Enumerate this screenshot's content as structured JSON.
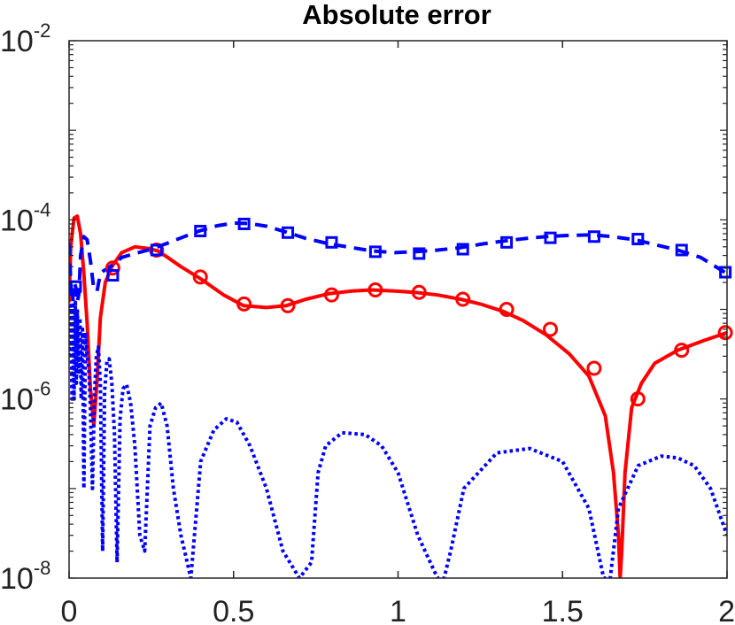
{
  "chart_data": {
    "type": "line",
    "title": "Absolute error",
    "xlabel": "",
    "ylabel": "",
    "xlim": [
      0,
      2
    ],
    "ylim": [
      1e-08,
      0.01
    ],
    "yscale": "log",
    "grid": false,
    "legend": null,
    "x_ticks": [
      0,
      0.5,
      1,
      1.5,
      2
    ],
    "x_tick_labels": [
      "0",
      "0.5",
      "1",
      "1.5",
      "2"
    ],
    "y_ticks": [
      1e-08,
      1e-06,
      0.0001,
      0.01
    ],
    "y_tick_labels": [
      {
        "base": "10",
        "exp": "-8"
      },
      {
        "base": "10",
        "exp": "-6"
      },
      {
        "base": "10",
        "exp": "-4"
      },
      {
        "base": "10",
        "exp": "-2"
      }
    ],
    "series": [
      {
        "style": "red solid line, circle markers",
        "color": "#ff0000",
        "x": [
          0.0,
          0.005,
          0.015,
          0.025,
          0.035,
          0.045,
          0.055,
          0.065,
          0.075,
          0.085,
          0.095,
          0.11,
          0.13,
          0.16,
          0.2,
          0.24,
          0.27,
          0.3,
          0.34,
          0.4,
          0.47,
          0.53,
          0.6,
          0.66,
          0.72,
          0.79,
          0.86,
          0.92,
          0.99,
          1.05,
          1.12,
          1.19,
          1.25,
          1.32,
          1.38,
          1.45,
          1.52,
          1.58,
          1.63,
          1.655,
          1.67,
          1.675,
          1.68,
          1.69,
          1.71,
          1.74,
          1.78,
          1.85,
          1.93,
          2.0
        ],
        "y": [
          1.2e-05,
          5e-05,
          0.000105,
          0.00011,
          7e-05,
          2.5e-05,
          7e-06,
          1.3e-06,
          5e-07,
          1.6e-06,
          8e-06,
          2e-05,
          3e-05,
          4.3e-05,
          5e-05,
          4.8e-05,
          4.5e-05,
          3.8e-05,
          3e-05,
          2.2e-05,
          1.45e-05,
          1.1e-05,
          1.05e-05,
          1.1e-05,
          1.3e-05,
          1.5e-05,
          1.6e-05,
          1.65e-05,
          1.6e-05,
          1.55e-05,
          1.45e-05,
          1.3e-05,
          1.15e-05,
          9.5e-06,
          7.5e-06,
          5.2e-06,
          3.2e-06,
          1.8e-06,
          6.5e-07,
          1.5e-07,
          3e-08,
          1e-08,
          2e-08,
          1.5e-07,
          8e-07,
          1.5e-06,
          2.5e-06,
          3.5e-06,
          4.5e-06,
          5.5e-06
        ],
        "markers_x": [
          0.133,
          0.266,
          0.399,
          0.532,
          0.665,
          0.798,
          0.931,
          1.064,
          1.197,
          1.33,
          1.463,
          1.596,
          1.729,
          1.862,
          1.995
        ],
        "markers_y": [
          2.9e-05,
          4.6e-05,
          2.3e-05,
          1.15e-05,
          1.1e-05,
          1.45e-05,
          1.65e-05,
          1.55e-05,
          1.3e-05,
          1e-05,
          6e-06,
          2.2e-06,
          1e-06,
          3.5e-06,
          5.5e-06
        ]
      },
      {
        "style": "blue dashed line, square markers",
        "color": "#0000ff",
        "x": [
          0.0,
          0.005,
          0.01,
          0.015,
          0.02,
          0.025,
          0.03,
          0.035,
          0.045,
          0.055,
          0.065,
          0.075,
          0.085,
          0.095,
          0.105,
          0.12,
          0.14,
          0.16,
          0.2,
          0.25,
          0.3,
          0.35,
          0.4,
          0.45,
          0.5,
          0.55,
          0.6,
          0.66,
          0.72,
          0.79,
          0.86,
          0.92,
          0.99,
          1.05,
          1.12,
          1.19,
          1.26,
          1.32,
          1.39,
          1.45,
          1.52,
          1.59,
          1.65,
          1.72,
          1.78,
          1.85,
          1.92,
          2.0
        ],
        "y": [
          5.5e-05,
          2e-05,
          1.2e-05,
          2e-05,
          1.8e-05,
          1.2e-05,
          1.5e-05,
          4e-05,
          6.5e-05,
          6e-05,
          3.5e-05,
          1.7e-05,
          1.6e-05,
          2.5e-05,
          2.7e-05,
          2.9e-05,
          3.3e-05,
          3.8e-05,
          4.2e-05,
          4.7e-05,
          5.5e-05,
          6.5e-05,
          7.6e-05,
          8.6e-05,
          9.2e-05,
          9.1e-05,
          8.5e-05,
          7.3e-05,
          6.2e-05,
          5.4e-05,
          4.9e-05,
          4.5e-05,
          4.3e-05,
          4.4e-05,
          4.6e-05,
          4.9e-05,
          5.4e-05,
          5.8e-05,
          6.2e-05,
          6.5e-05,
          6.7e-05,
          6.8e-05,
          6.5e-05,
          6e-05,
          5.3e-05,
          4.6e-05,
          3.8e-05,
          2.5e-05
        ],
        "markers_x": [
          0.02,
          0.133,
          0.266,
          0.399,
          0.532,
          0.665,
          0.798,
          0.931,
          1.064,
          1.197,
          1.33,
          1.463,
          1.596,
          1.729,
          1.862,
          1.995
        ],
        "markers_y": [
          1.8e-05,
          2.4e-05,
          4.6e-05,
          7.5e-05,
          9e-05,
          7.2e-05,
          5.6e-05,
          4.4e-05,
          4.2e-05,
          4.7e-05,
          5.6e-05,
          6.3e-05,
          6.5e-05,
          6.1e-05,
          4.6e-05,
          2.6e-05
        ]
      },
      {
        "style": "blue dotted line",
        "color": "#0000ff",
        "x": [
          0.0,
          0.005,
          0.009,
          0.012,
          0.015,
          0.019,
          0.022,
          0.025,
          0.029,
          0.033,
          0.037,
          0.041,
          0.045,
          0.05,
          0.055,
          0.06,
          0.065,
          0.071,
          0.077,
          0.083,
          0.089,
          0.095,
          0.102,
          0.108,
          0.115,
          0.122,
          0.13,
          0.138,
          0.146,
          0.155,
          0.164,
          0.175,
          0.187,
          0.2,
          0.215,
          0.23,
          0.246,
          0.263,
          0.28,
          0.298,
          0.317,
          0.34,
          0.37,
          0.4,
          0.44,
          0.478,
          0.51,
          0.55,
          0.6,
          0.65,
          0.7,
          0.737,
          0.757,
          0.78,
          0.83,
          0.9,
          0.95,
          1.0,
          1.06,
          1.12,
          1.14,
          1.16,
          1.2,
          1.3,
          1.4,
          1.5,
          1.58,
          1.625,
          1.645,
          1.67,
          1.73,
          1.8,
          1.85,
          1.9,
          1.95,
          2.0
        ],
        "y": [
          3e-06,
          1.1e-05,
          1e-06,
          1.3e-05,
          1e-06,
          1.2e-05,
          1.5e-06,
          1e-05,
          2e-06,
          8e-06,
          1e-06,
          6e-06,
          1e-07,
          5.5e-06,
          3e-06,
          2.2e-06,
          8e-07,
          1e-07,
          1.1e-06,
          3e-06,
          3.8e-06,
          1.5e-06,
          2e-08,
          1.2e-06,
          2.6e-06,
          2.8e-06,
          1.5e-06,
          4e-07,
          1.5e-08,
          6e-07,
          1.3e-06,
          1.45e-06,
          9e-07,
          3e-07,
          3e-08,
          2e-08,
          5e-07,
          8e-07,
          9e-07,
          5e-07,
          1e-07,
          3e-08,
          1e-08,
          2e-07,
          4.5e-07,
          6e-07,
          5.5e-07,
          3e-07,
          1e-07,
          2e-08,
          1e-08,
          1.5e-08,
          1.5e-07,
          3e-07,
          4.2e-07,
          4e-07,
          3e-07,
          1.5e-07,
          3e-08,
          1e-08,
          1e-08,
          2e-08,
          1e-07,
          2.5e-07,
          2.8e-07,
          2e-07,
          6e-08,
          1e-08,
          1e-08,
          6e-08,
          1.8e-07,
          2.3e-07,
          2.2e-07,
          1.8e-07,
          1e-07,
          3e-08
        ]
      }
    ]
  }
}
